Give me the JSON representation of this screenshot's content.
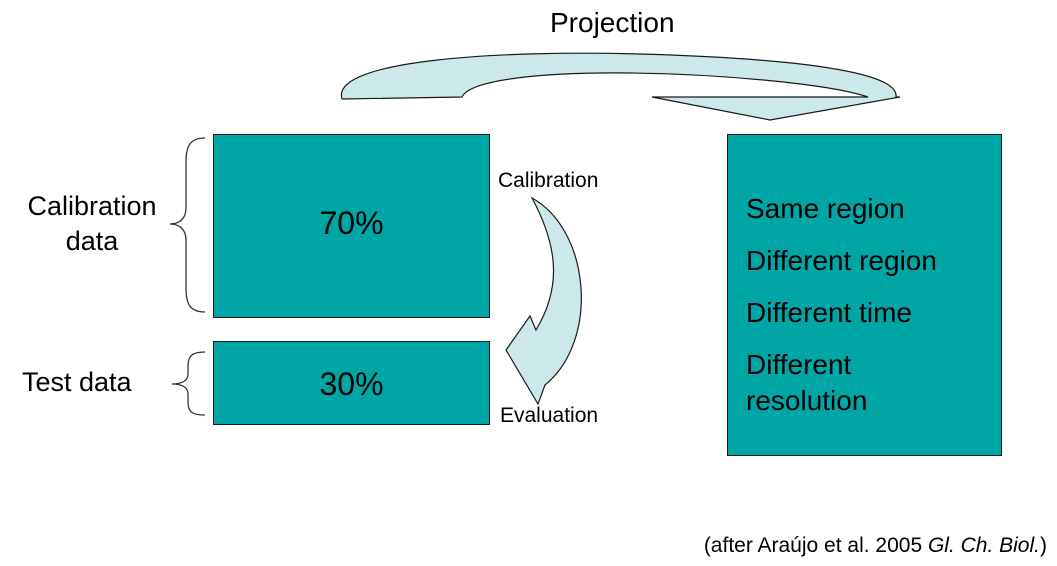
{
  "diagram": {
    "title": "Projection",
    "left_labels": {
      "calibration_data": "Calibration data",
      "test_data": "Test data"
    },
    "calibration_box": {
      "percent": "70%"
    },
    "test_box": {
      "percent": "30%"
    },
    "arrow_labels": {
      "calibration": "Calibration",
      "evaluation": "Evaluation"
    },
    "projection_targets": [
      "Same region",
      "Different region",
      "Different time",
      "Different resolution"
    ],
    "citation": {
      "prefix": "(after Araújo et al. 2005 ",
      "journal": "Gl. Ch. Biol.",
      "suffix": ")"
    },
    "colors": {
      "box_fill": "#00a6a6",
      "arrow_fill": "#cde8ea",
      "outline": "#1a1a1a"
    }
  }
}
